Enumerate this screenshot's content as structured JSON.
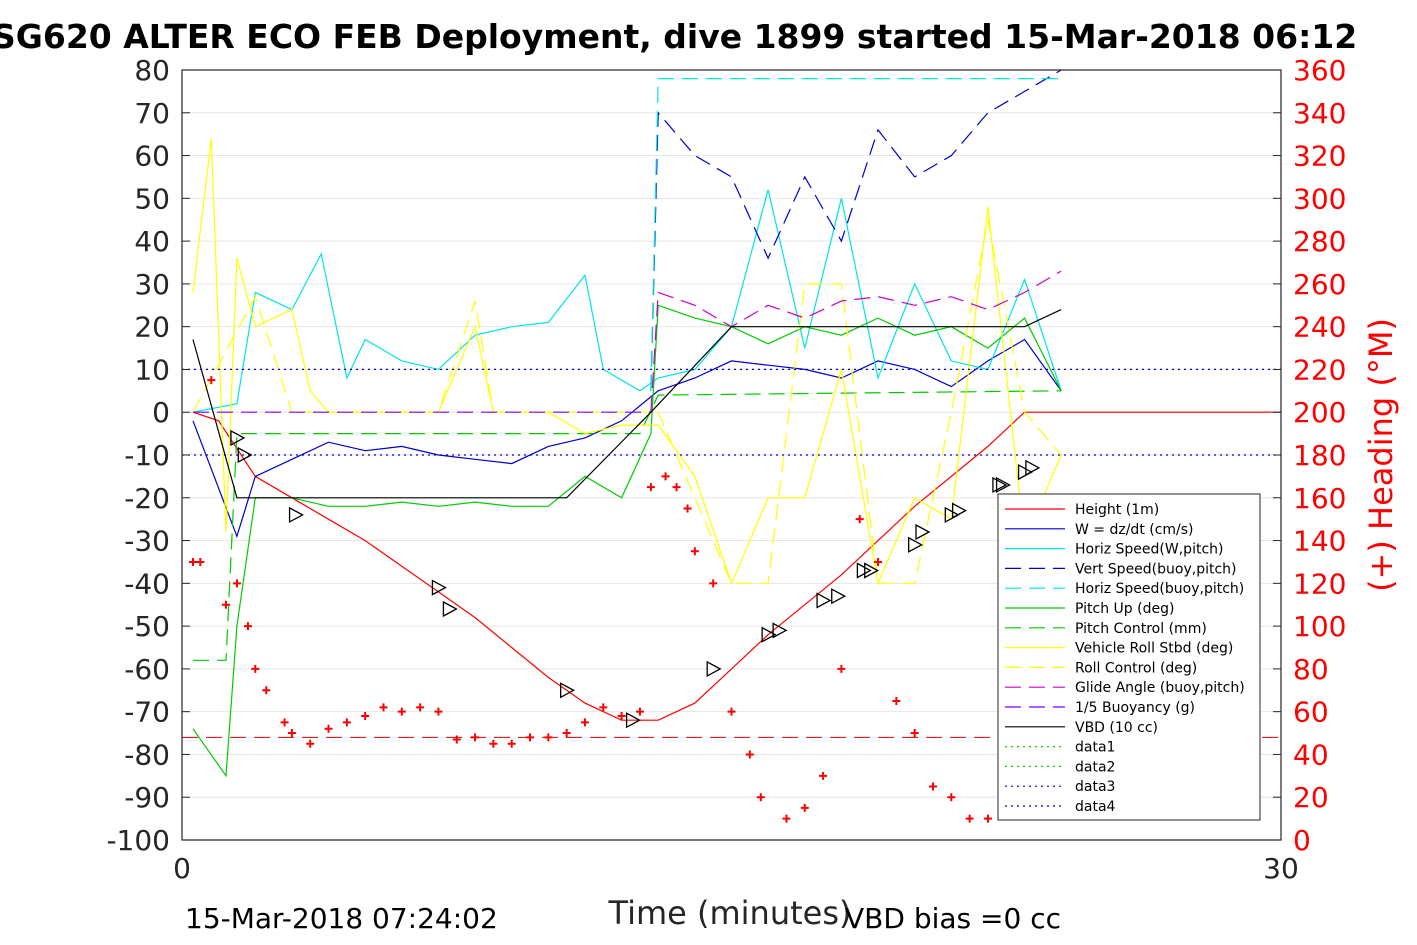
{
  "chart_data": {
    "type": "line",
    "title": "SG620 ALTER ECO FEB Deployment, dive 1899 started 15-Mar-2018 06:12",
    "xlabel": "Time (minutes)",
    "ylabel_right": "(+) Heading (°M)",
    "xlim": [
      0,
      30
    ],
    "ylim": [
      -100,
      80
    ],
    "ylim_right": [
      0,
      360
    ],
    "x_ticks": [
      "0",
      "30"
    ],
    "y_ticks": [
      "80",
      "70",
      "60",
      "50",
      "40",
      "30",
      "20",
      "10",
      "0",
      "-10",
      "-20",
      "-30",
      "-40",
      "-50",
      "-60",
      "-70",
      "-80",
      "-90",
      "-100"
    ],
    "y2_ticks": [
      "360",
      "340",
      "320",
      "300",
      "280",
      "260",
      "240",
      "220",
      "200",
      "180",
      "160",
      "140",
      "120",
      "100",
      "80",
      "60",
      "40",
      "20",
      "0"
    ],
    "footer_left": "15-Mar-2018 07:24:02",
    "footer_right": "VBD bias =0 cc",
    "legend_position": "bottom-right",
    "series": [
      {
        "name": "Height (1m)",
        "color": "#ff0000",
        "style": "solid",
        "x": [
          0.3,
          1.0,
          2.0,
          3.0,
          4.0,
          5.0,
          6.0,
          7.0,
          8.0,
          9.0,
          10.0,
          11.0,
          12.0,
          13.0,
          14.0,
          15.0,
          16.0,
          17.0,
          18.0,
          19.0,
          20.0,
          21.0,
          22.0,
          23.0,
          24.0,
          25.0,
          26.0,
          27.0,
          28.0,
          29.0,
          30.0
        ],
        "y": [
          0,
          -2,
          -15,
          -20,
          -25,
          -30,
          -36,
          -42,
          -48,
          -55,
          -62,
          -68,
          -72,
          -72,
          -68,
          -60,
          -52,
          -45,
          -38,
          -30,
          -22,
          -15,
          -8,
          0,
          0,
          0,
          0,
          0,
          0,
          0,
          0
        ]
      },
      {
        "name": "W = dz/dt (cm/s)",
        "color": "#0000cc",
        "style": "solid",
        "x": [
          0.3,
          1.5,
          2.0,
          3.0,
          4.0,
          5.0,
          6.0,
          7.0,
          8.0,
          9.0,
          10.0,
          11.0,
          12.0,
          13.0,
          14.0,
          15.0,
          16.0,
          17.0,
          18.0,
          19.0,
          20.0,
          21.0,
          22.0,
          23.0,
          24.0
        ],
        "y": [
          -2,
          -29,
          -15,
          -11,
          -7,
          -9,
          -8,
          -10,
          -11,
          -12,
          -8,
          -6,
          -2,
          5,
          8,
          12,
          11,
          10,
          8,
          12,
          10,
          6,
          12,
          17,
          5
        ]
      },
      {
        "name": "Horiz Speed(W,pitch)",
        "color": "#00e5e5",
        "style": "solid",
        "x": [
          0.3,
          1.5,
          2.0,
          3.0,
          3.8,
          4.5,
          5.0,
          6.0,
          7.0,
          8.0,
          9.0,
          10.0,
          11.0,
          11.5,
          12.5,
          13.0,
          14.0,
          15.0,
          16.0,
          17.0,
          18.0,
          19.0,
          20.0,
          21.0,
          22.0,
          23.0,
          24.0
        ],
        "y": [
          0,
          2,
          28,
          24,
          37,
          8,
          17,
          12,
          10,
          18,
          20,
          21,
          32,
          10,
          5,
          8,
          10,
          20,
          52,
          15,
          50,
          8,
          30,
          12,
          10,
          31,
          5
        ]
      },
      {
        "name": "Vert Speed(buoy,pitch)",
        "color": "#0000cc",
        "style": "dashed",
        "x": [
          12.8,
          13.0,
          14.0,
          15.0,
          16.0,
          17.0,
          18.0,
          19.0,
          20.0,
          21.0,
          22.0,
          23.0,
          24.0
        ],
        "y": [
          5,
          70,
          60,
          55,
          36,
          55,
          40,
          66,
          55,
          60,
          70,
          75,
          80
        ]
      },
      {
        "name": "Horiz Speed(buoy,pitch)",
        "color": "#00e5e5",
        "style": "dashed",
        "x": [
          12.8,
          13.0,
          24.0
        ],
        "y": [
          5,
          78,
          78
        ]
      },
      {
        "name": "Pitch Up (deg)",
        "color": "#00cc00",
        "style": "solid",
        "x": [
          0.3,
          1.2,
          1.5,
          2.0,
          3.0,
          4.0,
          5.0,
          6.0,
          7.0,
          8.0,
          9.0,
          10.0,
          11.0,
          12.0,
          12.8,
          13.0,
          14.0,
          15.0,
          16.0,
          17.0,
          18.0,
          19.0,
          20.0,
          21.0,
          22.0,
          23.0,
          24.0
        ],
        "y": [
          -74,
          -85,
          -50,
          -20,
          -20,
          -22,
          -22,
          -21,
          -22,
          -21,
          -22,
          -22,
          -15,
          -20,
          -5,
          25,
          22,
          20,
          16,
          20,
          18,
          22,
          18,
          20,
          15,
          22,
          5
        ]
      },
      {
        "name": "Pitch Control (mm)",
        "color": "#00cc00",
        "style": "dashed",
        "x": [
          0.3,
          1.2,
          1.5,
          2.0,
          12.5,
          13.0,
          24.0
        ],
        "y": [
          -58,
          -58,
          -5,
          -5,
          -5,
          4,
          5
        ]
      },
      {
        "name": "Vehicle Roll Stbd (deg)",
        "color": "#ffff00",
        "style": "solid",
        "x": [
          0.3,
          0.8,
          1.2,
          1.5,
          2.0,
          3.0,
          3.5,
          4.0,
          5.0,
          7.0,
          8.0,
          8.5,
          10.0,
          11.0,
          12.0,
          13.0,
          14.0,
          15.0,
          16.0,
          17.0,
          18.0,
          19.0,
          20.0,
          21.0,
          22.0,
          23.0,
          24.0
        ],
        "y": [
          28,
          64,
          -28,
          36,
          20,
          24,
          5,
          0,
          0,
          0,
          20,
          0,
          0,
          -5,
          -3,
          -3,
          -15,
          -40,
          -20,
          -20,
          10,
          -40,
          -20,
          -25,
          48,
          -30,
          -10
        ]
      },
      {
        "name": "Roll Control (deg)",
        "color": "#ffff00",
        "style": "dashed",
        "x": [
          0.3,
          2.0,
          3.0,
          7.0,
          8.0,
          8.5,
          13.0,
          15.0,
          16.0,
          17.0,
          18.0,
          19.0,
          20.0,
          21.0,
          22.0,
          23.0,
          24.0
        ],
        "y": [
          0,
          27,
          0,
          0,
          26,
          0,
          0,
          -40,
          -40,
          30,
          30,
          -40,
          -40,
          0,
          45,
          0,
          -10
        ]
      },
      {
        "name": "Glide Angle (buoy,pitch)",
        "color": "#cc00cc",
        "style": "dashed",
        "x": [
          12.8,
          13.0,
          14.0,
          15.0,
          16.0,
          17.0,
          18.0,
          19.0,
          20.0,
          21.0,
          22.0,
          23.0,
          24.0
        ],
        "y": [
          0,
          28,
          25,
          20,
          25,
          22,
          26,
          27,
          25,
          27,
          24,
          28,
          33
        ]
      },
      {
        "name": "1/5 Buoyancy (g)",
        "color": "#7f00ff",
        "style": "dashed",
        "x": [
          0.3,
          12.8
        ],
        "y": [
          0,
          0
        ]
      },
      {
        "name": "VBD (10 cc)",
        "color": "#000000",
        "style": "solid",
        "x": [
          0.3,
          1.5,
          10.5,
          12.8,
          15.0,
          23.0,
          24.0
        ],
        "y": [
          17,
          -20,
          -20,
          0,
          20,
          20,
          24
        ]
      },
      {
        "name": "data1",
        "color": "#00cc00",
        "style": "dotted",
        "x": [],
        "y": []
      },
      {
        "name": "data2",
        "color": "#00cc00",
        "style": "dotted",
        "x": [],
        "y": []
      },
      {
        "name": "data3",
        "color": "#0000cc",
        "style": "dotted",
        "x": [
          0,
          30
        ],
        "y": [
          10,
          10
        ]
      },
      {
        "name": "data4",
        "color": "#0000cc",
        "style": "dotted",
        "x": [
          0,
          30
        ],
        "y": [
          -10,
          -10
        ]
      }
    ],
    "heading_points_right_axis": {
      "color": "#ff0000",
      "x": [
        0.3,
        0.5,
        0.8,
        1.2,
        1.5,
        1.8,
        2.0,
        2.3,
        2.8,
        3.0,
        3.5,
        4.0,
        4.5,
        5.0,
        5.5,
        6.0,
        6.5,
        7.0,
        7.5,
        8.0,
        8.5,
        9.0,
        9.5,
        10.0,
        10.5,
        11.0,
        11.5,
        12.0,
        12.5,
        12.8,
        13.2,
        13.5,
        13.8,
        14.0,
        14.5,
        15.0,
        15.5,
        15.8,
        16.5,
        17.0,
        17.5,
        18.0,
        18.5,
        19.0,
        19.5,
        20.0,
        20.5,
        21.0,
        21.5,
        22.0,
        22.5,
        23.0
      ],
      "y": [
        130,
        130,
        215,
        110,
        120,
        100,
        80,
        70,
        55,
        50,
        45,
        52,
        55,
        58,
        62,
        60,
        62,
        60,
        47,
        48,
        45,
        45,
        48,
        48,
        50,
        55,
        62,
        58,
        60,
        165,
        170,
        165,
        155,
        135,
        120,
        60,
        40,
        20,
        10,
        15,
        30,
        80,
        150,
        130,
        65,
        50,
        25,
        20,
        10,
        10,
        20,
        25
      ]
    },
    "heading_reference_dashed": {
      "color": "#cc0000",
      "value_right_axis": 48
    },
    "markers": {
      "color": "#000000",
      "shape": "triangle",
      "x": [
        1.5,
        1.7,
        3.1,
        7.0,
        7.3,
        10.5,
        12.3,
        14.5,
        16.0,
        16.3,
        17.5,
        17.9,
        18.6,
        18.8,
        20.0,
        20.2,
        21.0,
        21.2,
        22.3,
        22.4,
        23.0,
        23.2
      ],
      "y": [
        -6,
        -10,
        -24,
        -41,
        -46,
        -65,
        -72,
        -60,
        -52,
        -51,
        -44,
        -43,
        -37,
        -37,
        -31,
        -28,
        -24,
        -23,
        -17,
        -17,
        -14,
        -13
      ]
    }
  }
}
